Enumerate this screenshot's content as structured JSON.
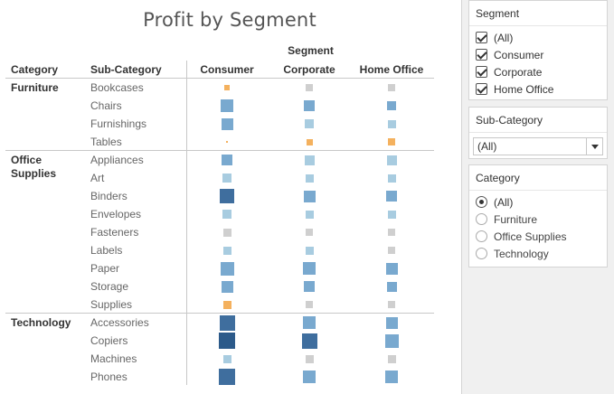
{
  "chart_data": {
    "type": "heatmap",
    "title": "Profit by Segment",
    "column_group_label": "Segment",
    "row_headers": [
      "Category",
      "Sub-Category"
    ],
    "columns": [
      "Consumer",
      "Corporate",
      "Home Office"
    ],
    "categories": [
      {
        "name": "Furniture",
        "subcategories": [
          "Bookcases",
          "Chairs",
          "Furnishings",
          "Tables"
        ]
      },
      {
        "name": "Office Supplies",
        "subcategories": [
          "Appliances",
          "Art",
          "Binders",
          "Envelopes",
          "Fasteners",
          "Labels",
          "Paper",
          "Storage",
          "Supplies"
        ]
      },
      {
        "name": "Technology",
        "subcategories": [
          "Accessories",
          "Copiers",
          "Machines",
          "Phones"
        ]
      }
    ],
    "size_scale": "relative 0-1 magnitude of profit",
    "sign_colors": {
      "positive_low": "#a8cce0",
      "positive_mid": "#79a9cf",
      "positive_high": "#2c5a8a",
      "neutral": "#cfcfcf",
      "negative": "#f4b15e"
    },
    "cells": [
      [
        {
          "v": 0.35,
          "c": "neg"
        },
        {
          "v": 0.45,
          "c": "neu"
        },
        {
          "v": 0.45,
          "c": "neu"
        }
      ],
      [
        {
          "v": 0.85,
          "c": "pos"
        },
        {
          "v": 0.7,
          "c": "pos"
        },
        {
          "v": 0.6,
          "c": "pos"
        }
      ],
      [
        {
          "v": 0.75,
          "c": "pos"
        },
        {
          "v": 0.6,
          "c": "posl"
        },
        {
          "v": 0.5,
          "c": "posl"
        }
      ],
      [
        {
          "v": 0.08,
          "c": "neg"
        },
        {
          "v": 0.4,
          "c": "neg"
        },
        {
          "v": 0.45,
          "c": "neg"
        }
      ],
      [
        {
          "v": 0.7,
          "c": "pos"
        },
        {
          "v": 0.65,
          "c": "posl"
        },
        {
          "v": 0.65,
          "c": "posl"
        }
      ],
      [
        {
          "v": 0.6,
          "c": "posl"
        },
        {
          "v": 0.55,
          "c": "posl"
        },
        {
          "v": 0.5,
          "c": "posl"
        }
      ],
      [
        {
          "v": 0.95,
          "c": "posd"
        },
        {
          "v": 0.75,
          "c": "pos"
        },
        {
          "v": 0.7,
          "c": "pos"
        }
      ],
      [
        {
          "v": 0.6,
          "c": "posl"
        },
        {
          "v": 0.55,
          "c": "posl"
        },
        {
          "v": 0.5,
          "c": "posl"
        }
      ],
      [
        {
          "v": 0.5,
          "c": "neu"
        },
        {
          "v": 0.45,
          "c": "neu"
        },
        {
          "v": 0.45,
          "c": "neu"
        }
      ],
      [
        {
          "v": 0.55,
          "c": "posl"
        },
        {
          "v": 0.5,
          "c": "posl"
        },
        {
          "v": 0.45,
          "c": "neu"
        }
      ],
      [
        {
          "v": 0.9,
          "c": "pos"
        },
        {
          "v": 0.8,
          "c": "pos"
        },
        {
          "v": 0.75,
          "c": "pos"
        }
      ],
      [
        {
          "v": 0.75,
          "c": "pos"
        },
        {
          "v": 0.7,
          "c": "pos"
        },
        {
          "v": 0.65,
          "c": "pos"
        }
      ],
      [
        {
          "v": 0.5,
          "c": "neg"
        },
        {
          "v": 0.45,
          "c": "neu"
        },
        {
          "v": 0.45,
          "c": "neu"
        }
      ],
      [
        {
          "v": 1.0,
          "c": "posd"
        },
        {
          "v": 0.85,
          "c": "pos"
        },
        {
          "v": 0.75,
          "c": "pos"
        }
      ],
      [
        {
          "v": 1.05,
          "c": "posx"
        },
        {
          "v": 1.0,
          "c": "posd"
        },
        {
          "v": 0.9,
          "c": "pos"
        }
      ],
      [
        {
          "v": 0.55,
          "c": "posl"
        },
        {
          "v": 0.5,
          "c": "neu"
        },
        {
          "v": 0.5,
          "c": "neu"
        }
      ],
      [
        {
          "v": 1.05,
          "c": "posd"
        },
        {
          "v": 0.85,
          "c": "pos"
        },
        {
          "v": 0.8,
          "c": "pos"
        }
      ]
    ]
  },
  "filters": {
    "segment": {
      "title": "Segment",
      "items": [
        {
          "label": "(All)",
          "checked": true
        },
        {
          "label": "Consumer",
          "checked": true
        },
        {
          "label": "Corporate",
          "checked": true
        },
        {
          "label": "Home Office",
          "checked": true
        }
      ]
    },
    "subcategory": {
      "title": "Sub-Category",
      "value": "(All)"
    },
    "category": {
      "title": "Category",
      "selected": 0,
      "items": [
        "(All)",
        "Furniture",
        "Office Supplies",
        "Technology"
      ]
    }
  }
}
